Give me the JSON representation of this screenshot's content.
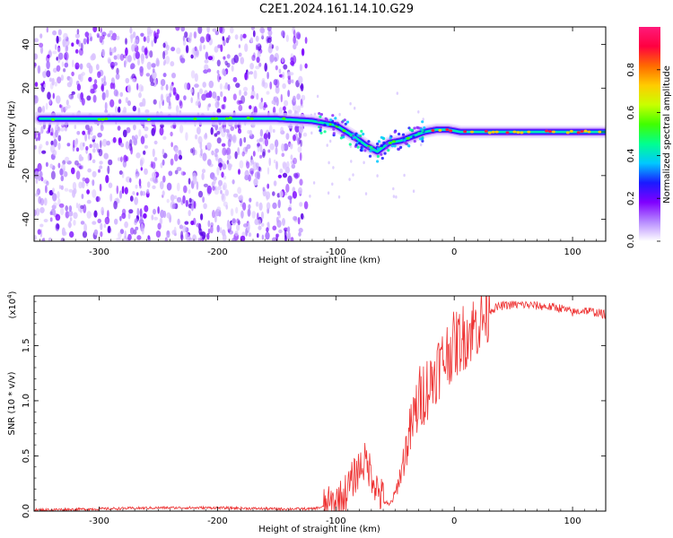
{
  "title": "C2E1.2024.161.14.10.G29",
  "chart_data": [
    {
      "type": "heatmap",
      "xlabel": "Height of straight line (km)",
      "ylabel": "Frequency (Hz)",
      "xlim": [
        -355,
        128
      ],
      "ylim": [
        -50,
        48
      ],
      "x_ticks": [
        -300,
        -200,
        -100,
        0,
        100
      ],
      "y_ticks": [
        -40,
        -20,
        0,
        20,
        40
      ],
      "colorbar": {
        "label": "Normalized spectral amplitude",
        "range": [
          0,
          1
        ],
        "ticks": [
          "0.0",
          "0.2",
          "0.4",
          "0.6",
          "0.8"
        ],
        "colors": [
          "#ffffff",
          "#b68aff",
          "#8000ff",
          "#1a1aff",
          "#00c8ff",
          "#00ff90",
          "#40ff00",
          "#c8ff00",
          "#ffcc00",
          "#ff6a00",
          "#ff0040",
          "#ff1a7a"
        ]
      },
      "ridge": {
        "x": [
          -350,
          -300,
          -250,
          -200,
          -150,
          -120,
          -100,
          -85,
          -75,
          -65,
          -55,
          -45,
          -35,
          -25,
          -15,
          -5,
          5,
          20,
          50,
          100,
          128
        ],
        "frequency": [
          6,
          6,
          6,
          6,
          6,
          5,
          3,
          -2,
          -6,
          -9,
          -5,
          -4,
          -2,
          0,
          1,
          1,
          0,
          0,
          0,
          0,
          0
        ]
      },
      "noise_region": {
        "x_from": -355,
        "x_to": -125
      }
    },
    {
      "type": "line",
      "xlabel": "Height of straight line (km)",
      "ylabel": "SNR (10 * v/v)",
      "y_multiplier": "(x10",
      "y_multiplier_exp": "4",
      "y_multiplier_close": ")",
      "xlim": [
        -355,
        128
      ],
      "ylim": [
        0,
        1.95
      ],
      "x_ticks": [
        -300,
        -200,
        -100,
        0,
        100
      ],
      "y_ticks": [
        "0.0",
        "0.5",
        "1.0",
        "1.5"
      ],
      "line_color": "#ee3333",
      "series": [
        {
          "x": [
            -355,
            -300,
            -250,
            -200,
            -150,
            -120,
            -105,
            -95,
            -90,
            -85,
            -80,
            -75,
            -70,
            -65,
            -60,
            -55,
            -50,
            -45,
            -40,
            -35,
            -30,
            -25,
            -20,
            -15,
            -10,
            -5,
            0,
            5,
            10,
            15,
            20,
            25,
            30,
            40,
            50,
            60,
            70,
            80,
            90,
            100,
            110,
            120,
            128
          ],
          "y": [
            0.01,
            0.02,
            0.03,
            0.03,
            0.02,
            0.02,
            0.05,
            0.12,
            0.2,
            0.3,
            0.4,
            0.45,
            0.35,
            0.2,
            0.1,
            0.05,
            0.15,
            0.35,
            0.6,
            0.8,
            1.0,
            1.1,
            1.15,
            1.3,
            1.35,
            1.45,
            1.5,
            1.55,
            1.6,
            1.65,
            1.7,
            1.75,
            1.82,
            1.86,
            1.87,
            1.87,
            1.86,
            1.85,
            1.84,
            1.8,
            1.82,
            1.8,
            1.78
          ]
        }
      ]
    }
  ]
}
